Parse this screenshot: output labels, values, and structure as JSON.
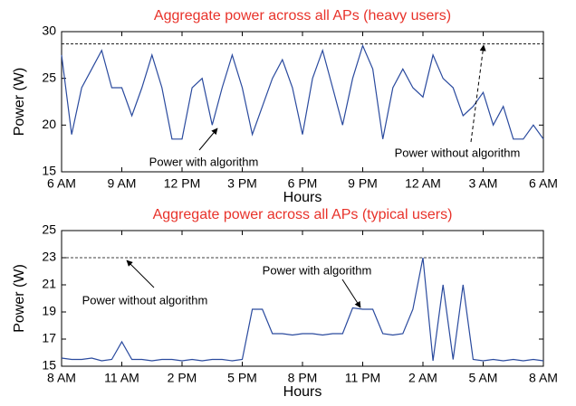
{
  "chart_data": [
    {
      "type": "line",
      "title": "Aggregate power across all APs (heavy users)",
      "xlabel": "Hours",
      "ylabel": "Power (W)",
      "x": [
        0,
        0.5,
        1,
        1.5,
        2,
        2.5,
        3,
        3.5,
        4,
        4.5,
        5,
        5.5,
        6,
        6.5,
        7,
        7.5,
        8,
        8.5,
        9,
        9.5,
        10,
        10.5,
        11,
        11.5,
        12,
        12.5,
        13,
        13.5,
        14,
        14.5,
        15,
        15.5,
        16,
        16.5,
        17,
        17.5,
        18,
        18.5,
        19,
        19.5,
        20,
        20.5,
        21,
        21.5,
        22,
        22.5,
        23,
        23.5,
        24
      ],
      "series": [
        {
          "name": "Power with algorithm",
          "color": "#2a4a9e",
          "values": [
            27.5,
            19,
            24,
            26,
            28,
            24,
            24,
            21,
            24,
            27.5,
            24,
            18.5,
            18.5,
            24,
            25,
            20,
            24,
            27.5,
            24,
            19,
            22,
            25,
            27,
            24,
            19,
            25,
            28,
            24,
            20,
            25,
            28.5,
            26,
            18.5,
            24,
            26,
            24,
            23,
            27.5,
            25,
            24,
            21,
            22,
            23.5,
            20,
            22,
            18.5,
            18.5,
            20,
            18.5
          ]
        }
      ],
      "reference_line": 28.7,
      "reference_name": "Power without algorithm",
      "xlim": [
        0,
        24
      ],
      "ylim": [
        15,
        30
      ],
      "yticks": [
        15,
        20,
        25,
        30
      ],
      "xticks": [
        {
          "value": 0,
          "label": "6 AM"
        },
        {
          "value": 3,
          "label": "9 AM"
        },
        {
          "value": 6,
          "label": "12 PM"
        },
        {
          "value": 9,
          "label": "3 PM"
        },
        {
          "value": 12,
          "label": "6 PM"
        },
        {
          "value": 15,
          "label": "9 PM"
        },
        {
          "value": 18,
          "label": "12 AM"
        },
        {
          "value": 21,
          "label": "3 AM"
        },
        {
          "value": 24,
          "label": "6 AM"
        }
      ],
      "grid": false
    },
    {
      "type": "line",
      "title": "Aggregate power across all APs (typical users)",
      "xlabel": "Hours",
      "ylabel": "Power (W)",
      "x": [
        0,
        0.5,
        1,
        1.5,
        2,
        2.5,
        3,
        3.5,
        4,
        4.5,
        5,
        5.5,
        6,
        6.5,
        7,
        7.5,
        8,
        8.5,
        9,
        9.5,
        10,
        10.5,
        11,
        11.5,
        12,
        12.5,
        13,
        13.5,
        14,
        14.5,
        15,
        15.5,
        16,
        16.5,
        17,
        17.5,
        18,
        18.5,
        19,
        19.5,
        20,
        20.5,
        21,
        21.5,
        22,
        22.5,
        23,
        23.5,
        24
      ],
      "series": [
        {
          "name": "Power with algorithm",
          "color": "#2a4a9e",
          "values": [
            15.6,
            15.5,
            15.5,
            15.6,
            15.4,
            15.5,
            16.8,
            15.5,
            15.5,
            15.4,
            15.5,
            15.5,
            15.4,
            15.5,
            15.4,
            15.5,
            15.5,
            15.4,
            15.5,
            19.2,
            19.2,
            17.4,
            17.4,
            17.3,
            17.4,
            17.4,
            17.3,
            17.4,
            17.4,
            19.3,
            19.2,
            19.2,
            17.4,
            17.3,
            17.4,
            19.2,
            23,
            15.4,
            21,
            15.5,
            21,
            15.5,
            15.4,
            15.5,
            15.4,
            15.5,
            15.4,
            15.5,
            15.4
          ]
        }
      ],
      "reference_line": 23,
      "reference_name": "Power without algorithm",
      "xlim": [
        0,
        24
      ],
      "ylim": [
        15,
        25
      ],
      "yticks": [
        15,
        17,
        19,
        21,
        23,
        25
      ],
      "xticks": [
        {
          "value": 0,
          "label": "8 AM"
        },
        {
          "value": 3,
          "label": "11 AM"
        },
        {
          "value": 6,
          "label": "2 PM"
        },
        {
          "value": 9,
          "label": "5 PM"
        },
        {
          "value": 12,
          "label": "8 PM"
        },
        {
          "value": 15,
          "label": "11 PM"
        },
        {
          "value": 18,
          "label": "2 AM"
        },
        {
          "value": 21,
          "label": "5 AM"
        },
        {
          "value": 24,
          "label": "8 AM"
        }
      ],
      "grid": false
    }
  ]
}
